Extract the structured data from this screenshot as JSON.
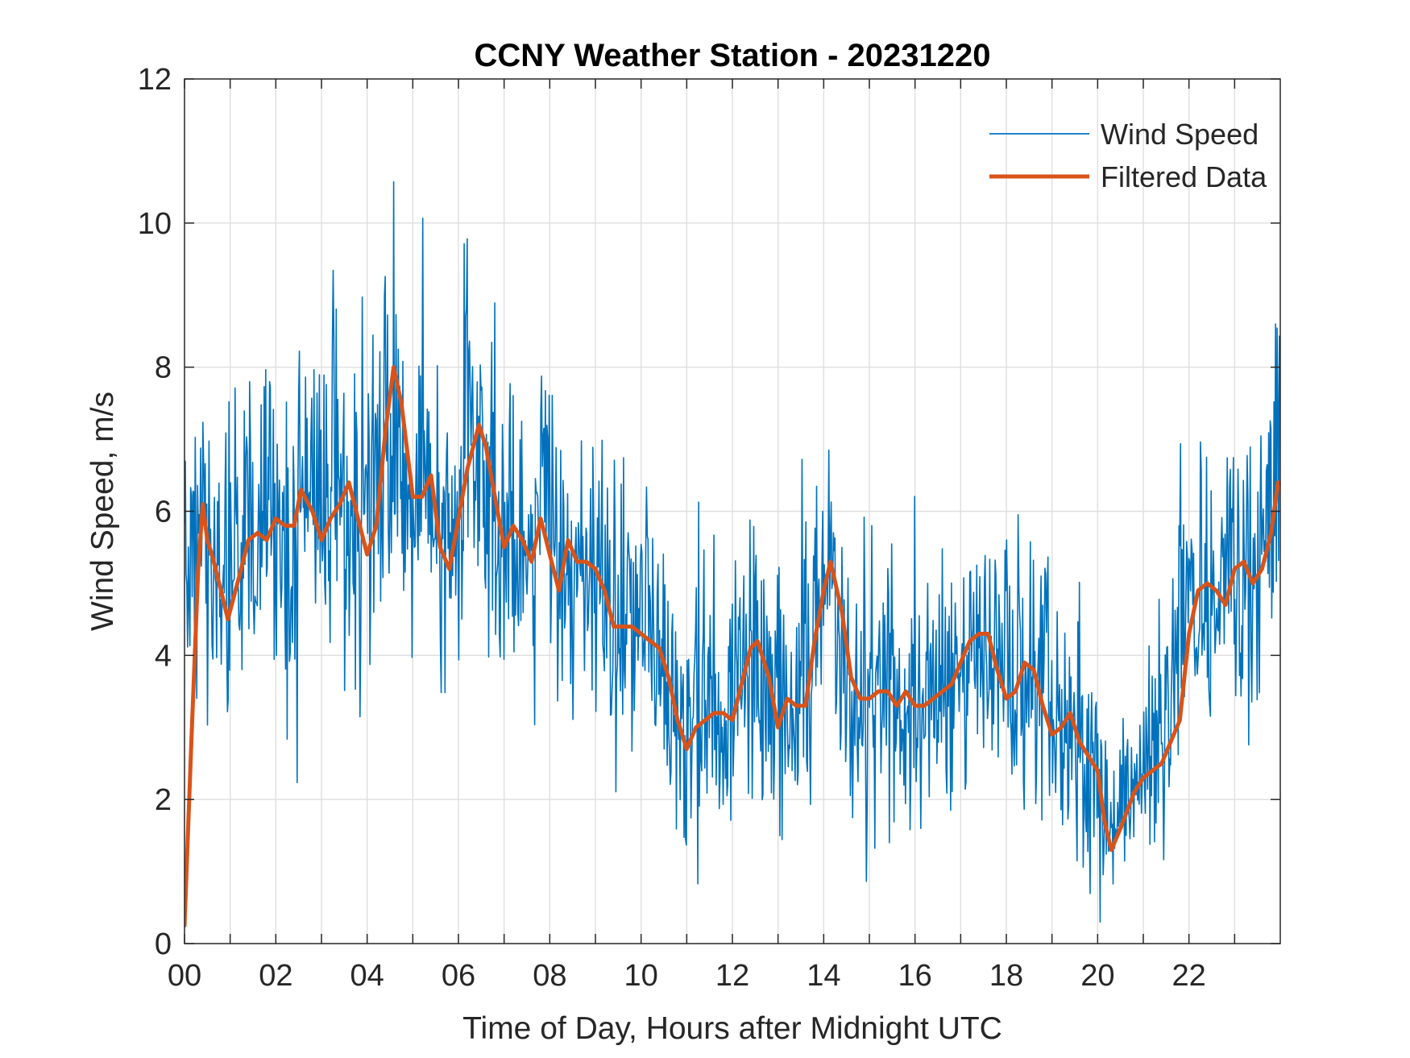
{
  "chart_data": {
    "type": "line",
    "title": "CCNY Weather Station - 20231220",
    "xlabel": "Time of Day, Hours after Midnight UTC",
    "ylabel": "Wind Speed, m/s",
    "xlim": [
      0,
      24
    ],
    "ylim": [
      0,
      12
    ],
    "grid": true,
    "legend_position": "top-right",
    "x_ticks": [
      0,
      2,
      4,
      6,
      8,
      10,
      12,
      14,
      16,
      18,
      20,
      22
    ],
    "x_tick_labels": [
      "00",
      "02",
      "04",
      "06",
      "08",
      "10",
      "12",
      "14",
      "16",
      "18",
      "20",
      "22"
    ],
    "x_minor_ticks": [
      1,
      3,
      5,
      7,
      9,
      11,
      13,
      15,
      17,
      19,
      21,
      23
    ],
    "y_ticks": [
      0,
      2,
      4,
      6,
      8,
      10,
      12
    ],
    "y_tick_labels": [
      "0",
      "2",
      "4",
      "6",
      "8",
      "10",
      "12"
    ],
    "series": [
      {
        "name": "Wind Speed",
        "color": "#0072BD",
        "style": "thin-noisy",
        "x": [
          0.0,
          0.2,
          0.4,
          0.6,
          0.8,
          1.0,
          1.2,
          1.4,
          1.6,
          1.8,
          2.0,
          2.2,
          2.4,
          2.6,
          2.8,
          3.0,
          3.2,
          3.4,
          3.6,
          3.8,
          4.0,
          4.2,
          4.4,
          4.6,
          4.8,
          5.0,
          5.2,
          5.4,
          5.6,
          5.8,
          6.0,
          6.2,
          6.4,
          6.6,
          6.8,
          7.0,
          7.2,
          7.4,
          7.6,
          7.8,
          8.0,
          8.2,
          8.4,
          8.6,
          8.8,
          9.0,
          9.2,
          9.4,
          9.6,
          9.8,
          10.0,
          10.2,
          10.4,
          10.6,
          10.8,
          11.0,
          11.2,
          11.4,
          11.6,
          11.8,
          12.0,
          12.2,
          12.4,
          12.6,
          12.8,
          13.0,
          13.2,
          13.4,
          13.6,
          13.8,
          14.0,
          14.2,
          14.4,
          14.6,
          14.8,
          15.0,
          15.2,
          15.4,
          15.6,
          15.8,
          16.0,
          16.2,
          16.4,
          16.6,
          16.8,
          17.0,
          17.2,
          17.4,
          17.6,
          17.8,
          18.0,
          18.2,
          18.4,
          18.6,
          18.8,
          19.0,
          19.2,
          19.4,
          19.6,
          19.8,
          20.0,
          20.2,
          20.4,
          20.6,
          20.8,
          21.0,
          21.2,
          21.4,
          21.6,
          21.8,
          22.0,
          22.2,
          22.4,
          22.6,
          22.8,
          23.0,
          23.2,
          23.4,
          23.6,
          23.8,
          23.95
        ],
        "base": [
          5.8,
          5.8,
          5.5,
          5.0,
          4.8,
          5.2,
          5.6,
          5.7,
          5.7,
          5.8,
          5.8,
          5.9,
          6.2,
          6.0,
          5.7,
          5.8,
          6.1,
          6.3,
          5.9,
          5.4,
          5.5,
          6.3,
          7.6,
          7.2,
          6.5,
          6.2,
          6.3,
          6.0,
          5.5,
          5.3,
          6.2,
          6.9,
          6.7,
          6.1,
          5.7,
          5.6,
          5.7,
          5.5,
          5.3,
          5.8,
          5.6,
          5.1,
          5.4,
          5.3,
          5.2,
          5.2,
          4.9,
          4.6,
          4.3,
          4.4,
          4.3,
          4.2,
          4.1,
          3.5,
          2.9,
          2.8,
          3.0,
          3.1,
          3.2,
          3.3,
          3.3,
          3.8,
          4.0,
          3.6,
          3.2,
          3.3,
          3.3,
          3.2,
          3.5,
          4.2,
          5.0,
          5.1,
          4.1,
          3.6,
          3.5,
          3.4,
          3.5,
          3.5,
          3.4,
          3.4,
          3.4,
          3.4,
          3.3,
          3.4,
          3.5,
          3.6,
          3.9,
          4.1,
          4.2,
          4.0,
          3.7,
          3.5,
          3.5,
          3.8,
          3.7,
          3.2,
          3.0,
          2.9,
          3.0,
          2.7,
          2.4,
          1.6,
          1.9,
          2.2,
          2.3,
          2.4,
          2.5,
          2.8,
          3.6,
          4.7,
          5.0,
          5.0,
          4.9,
          4.9,
          5.1,
          5.2,
          5.0,
          5.1,
          5.6,
          6.2,
          6.2
        ],
        "noise_amplitude": [
          1.1,
          1.0,
          1.0,
          1.0,
          1.0,
          1.0,
          1.0,
          1.0,
          1.0,
          1.0,
          1.0,
          1.0,
          1.1,
          1.0,
          1.0,
          1.0,
          1.1,
          1.1,
          1.0,
          1.0,
          1.0,
          1.3,
          1.6,
          1.4,
          1.2,
          1.2,
          1.1,
          1.1,
          1.1,
          1.0,
          1.2,
          1.3,
          1.2,
          1.1,
          1.0,
          1.0,
          1.0,
          1.0,
          1.0,
          1.1,
          1.0,
          1.0,
          1.0,
          0.9,
          0.9,
          0.9,
          0.9,
          0.9,
          0.9,
          0.9,
          0.9,
          0.9,
          0.9,
          0.9,
          0.9,
          0.9,
          0.9,
          0.9,
          0.9,
          0.9,
          0.9,
          0.9,
          0.9,
          0.9,
          0.9,
          0.9,
          0.9,
          0.9,
          0.9,
          1.0,
          1.1,
          1.1,
          0.9,
          0.9,
          0.9,
          0.9,
          0.9,
          0.9,
          0.9,
          0.9,
          0.9,
          0.9,
          0.9,
          0.9,
          0.9,
          0.9,
          0.9,
          0.9,
          0.9,
          0.9,
          0.9,
          0.9,
          0.9,
          0.9,
          0.9,
          0.8,
          0.8,
          0.8,
          0.8,
          0.8,
          0.7,
          0.6,
          0.6,
          0.6,
          0.6,
          0.6,
          0.6,
          0.7,
          0.9,
          1.0,
          1.0,
          1.0,
          1.0,
          1.0,
          1.0,
          1.0,
          1.0,
          1.0,
          1.2,
          1.3,
          1.2
        ]
      },
      {
        "name": "Filtered Data",
        "color": "#D95319",
        "style": "thick",
        "x": [
          0.0,
          0.15,
          0.3,
          0.4,
          0.5,
          0.6,
          0.8,
          0.95,
          1.2,
          1.4,
          1.6,
          1.8,
          2.0,
          2.2,
          2.4,
          2.55,
          2.8,
          3.0,
          3.2,
          3.4,
          3.6,
          3.8,
          4.0,
          4.2,
          4.4,
          4.58,
          4.75,
          5.0,
          5.2,
          5.4,
          5.6,
          5.8,
          6.0,
          6.2,
          6.45,
          6.6,
          6.8,
          7.0,
          7.2,
          7.4,
          7.6,
          7.8,
          8.0,
          8.2,
          8.4,
          8.6,
          8.8,
          9.0,
          9.2,
          9.4,
          9.6,
          9.8,
          10.0,
          10.2,
          10.4,
          10.6,
          10.8,
          11.0,
          11.2,
          11.4,
          11.6,
          11.8,
          12.0,
          12.2,
          12.4,
          12.55,
          12.8,
          13.0,
          13.2,
          13.4,
          13.6,
          13.8,
          14.0,
          14.15,
          14.4,
          14.6,
          14.8,
          15.0,
          15.2,
          15.4,
          15.6,
          15.8,
          16.0,
          16.2,
          16.4,
          16.6,
          16.8,
          17.0,
          17.2,
          17.4,
          17.6,
          17.8,
          18.0,
          18.2,
          18.4,
          18.6,
          18.8,
          19.0,
          19.2,
          19.4,
          19.6,
          19.8,
          20.0,
          20.15,
          20.3,
          20.5,
          20.8,
          21.0,
          21.2,
          21.4,
          21.6,
          21.8,
          22.0,
          22.2,
          22.4,
          22.6,
          22.8,
          23.0,
          23.2,
          23.4,
          23.6,
          23.8,
          23.95
        ],
        "values": [
          0.25,
          2.8,
          5.2,
          6.1,
          5.6,
          5.4,
          4.9,
          4.5,
          5.1,
          5.6,
          5.7,
          5.6,
          5.9,
          5.8,
          5.8,
          6.3,
          6.0,
          5.6,
          5.9,
          6.1,
          6.4,
          5.9,
          5.4,
          5.8,
          7.1,
          8.0,
          7.5,
          6.2,
          6.2,
          6.5,
          5.5,
          5.2,
          5.9,
          6.6,
          7.2,
          6.9,
          6.2,
          5.5,
          5.8,
          5.6,
          5.3,
          5.9,
          5.4,
          4.9,
          5.6,
          5.3,
          5.3,
          5.2,
          4.9,
          4.4,
          4.4,
          4.4,
          4.3,
          4.2,
          4.1,
          3.7,
          3.1,
          2.7,
          3.0,
          3.1,
          3.2,
          3.2,
          3.1,
          3.6,
          4.1,
          4.2,
          3.7,
          3.0,
          3.4,
          3.3,
          3.3,
          4.2,
          4.9,
          5.3,
          4.6,
          3.7,
          3.4,
          3.4,
          3.5,
          3.5,
          3.3,
          3.5,
          3.3,
          3.3,
          3.4,
          3.5,
          3.6,
          3.9,
          4.2,
          4.3,
          4.3,
          3.8,
          3.4,
          3.5,
          3.9,
          3.8,
          3.3,
          2.9,
          3.0,
          3.2,
          2.8,
          2.6,
          2.4,
          1.7,
          1.3,
          1.6,
          2.1,
          2.3,
          2.4,
          2.5,
          2.8,
          3.1,
          4.3,
          4.9,
          5.0,
          4.9,
          4.7,
          5.2,
          5.3,
          5.0,
          5.2,
          5.7,
          6.4
        ]
      }
    ]
  }
}
